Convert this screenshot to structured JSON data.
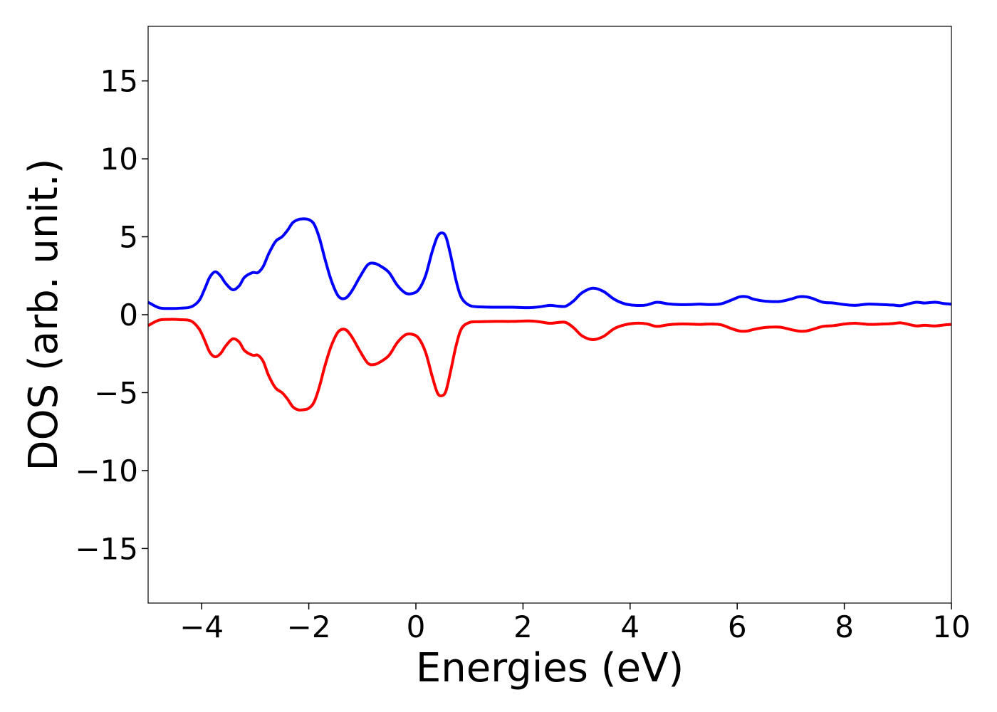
{
  "chart_data": {
    "type": "line",
    "title": "",
    "xlabel": "Energies (eV)",
    "ylabel": "DOS (arb. unit.)",
    "xlim": [
      -5,
      10
    ],
    "ylim": [
      -18.5,
      18.5
    ],
    "grid": false,
    "legend": "none",
    "x_ticks": [
      -4,
      -2,
      0,
      2,
      4,
      6,
      8,
      10
    ],
    "x_tick_labels": [
      "−4",
      "−2",
      "0",
      "2",
      "4",
      "6",
      "8",
      "10"
    ],
    "y_ticks": [
      15,
      10,
      5,
      0,
      -5,
      -10,
      -15
    ],
    "y_tick_labels": [
      "15",
      "10",
      "5",
      "0",
      "−5",
      "−10",
      "−15"
    ],
    "colors": {
      "spin_up": "#0000ff",
      "spin_down": "#ff0000",
      "axes": "#000000"
    },
    "x": [
      -5.0,
      -4.8,
      -4.6,
      -4.4,
      -4.2,
      -4.05,
      -3.95,
      -3.85,
      -3.75,
      -3.65,
      -3.55,
      -3.42,
      -3.3,
      -3.2,
      -3.05,
      -2.95,
      -2.85,
      -2.75,
      -2.62,
      -2.5,
      -2.4,
      -2.3,
      -2.2,
      -2.1,
      -2.0,
      -1.9,
      -1.8,
      -1.7,
      -1.58,
      -1.45,
      -1.32,
      -1.2,
      -1.05,
      -0.9,
      -0.78,
      -0.65,
      -0.5,
      -0.35,
      -0.2,
      -0.08,
      0.05,
      0.18,
      0.3,
      0.4,
      0.48,
      0.56,
      0.65,
      0.75,
      0.85,
      1.0,
      1.2,
      1.5,
      1.8,
      2.1,
      2.3,
      2.5,
      2.65,
      2.8,
      2.95,
      3.1,
      3.3,
      3.5,
      3.7,
      3.9,
      4.1,
      4.3,
      4.5,
      4.7,
      4.9,
      5.1,
      5.3,
      5.5,
      5.7,
      5.9,
      6.05,
      6.18,
      6.3,
      6.45,
      6.6,
      6.8,
      7.0,
      7.15,
      7.28,
      7.4,
      7.6,
      7.8,
      8.0,
      8.2,
      8.45,
      8.7,
      8.9,
      9.05,
      9.2,
      9.35,
      9.5,
      9.7,
      9.85,
      10.0
    ],
    "series": [
      {
        "values": [
          0.8,
          0.45,
          0.4,
          0.42,
          0.5,
          0.9,
          1.6,
          2.4,
          2.75,
          2.5,
          2.0,
          1.6,
          1.85,
          2.4,
          2.7,
          2.7,
          3.1,
          3.9,
          4.7,
          5.0,
          5.4,
          5.9,
          6.1,
          6.15,
          6.1,
          5.8,
          4.9,
          3.6,
          2.2,
          1.2,
          1.05,
          1.5,
          2.4,
          3.2,
          3.3,
          3.1,
          2.7,
          1.9,
          1.4,
          1.35,
          1.6,
          2.5,
          4.0,
          5.0,
          5.25,
          5.0,
          3.8,
          2.2,
          1.1,
          0.6,
          0.5,
          0.48,
          0.48,
          0.45,
          0.5,
          0.6,
          0.55,
          0.55,
          0.9,
          1.4,
          1.7,
          1.5,
          1.0,
          0.7,
          0.6,
          0.62,
          0.8,
          0.7,
          0.65,
          0.65,
          0.68,
          0.65,
          0.7,
          0.95,
          1.15,
          1.15,
          1.0,
          0.9,
          0.85,
          0.85,
          1.0,
          1.15,
          1.15,
          1.05,
          0.8,
          0.75,
          0.65,
          0.6,
          0.68,
          0.65,
          0.62,
          0.58,
          0.7,
          0.8,
          0.75,
          0.8,
          0.72,
          0.68
        ]
      },
      {
        "values": [
          -0.7,
          -0.35,
          -0.3,
          -0.32,
          -0.4,
          -0.9,
          -1.6,
          -2.4,
          -2.7,
          -2.5,
          -2.0,
          -1.55,
          -1.75,
          -2.3,
          -2.6,
          -2.6,
          -3.0,
          -3.9,
          -4.7,
          -5.0,
          -5.4,
          -5.9,
          -6.1,
          -6.1,
          -6.0,
          -5.6,
          -4.6,
          -3.3,
          -2.0,
          -1.1,
          -0.95,
          -1.4,
          -2.3,
          -3.1,
          -3.2,
          -3.0,
          -2.6,
          -1.8,
          -1.3,
          -1.25,
          -1.5,
          -2.4,
          -3.9,
          -5.0,
          -5.2,
          -4.9,
          -3.6,
          -2.0,
          -0.9,
          -0.5,
          -0.45,
          -0.43,
          -0.43,
          -0.4,
          -0.45,
          -0.55,
          -0.5,
          -0.5,
          -0.85,
          -1.35,
          -1.6,
          -1.4,
          -0.9,
          -0.65,
          -0.55,
          -0.58,
          -0.75,
          -0.65,
          -0.6,
          -0.6,
          -0.62,
          -0.6,
          -0.65,
          -0.9,
          -1.05,
          -1.05,
          -0.95,
          -0.85,
          -0.8,
          -0.8,
          -0.95,
          -1.05,
          -1.05,
          -0.95,
          -0.75,
          -0.7,
          -0.6,
          -0.55,
          -0.62,
          -0.6,
          -0.57,
          -0.52,
          -0.62,
          -0.72,
          -0.68,
          -0.72,
          -0.66,
          -0.62
        ]
      }
    ]
  }
}
